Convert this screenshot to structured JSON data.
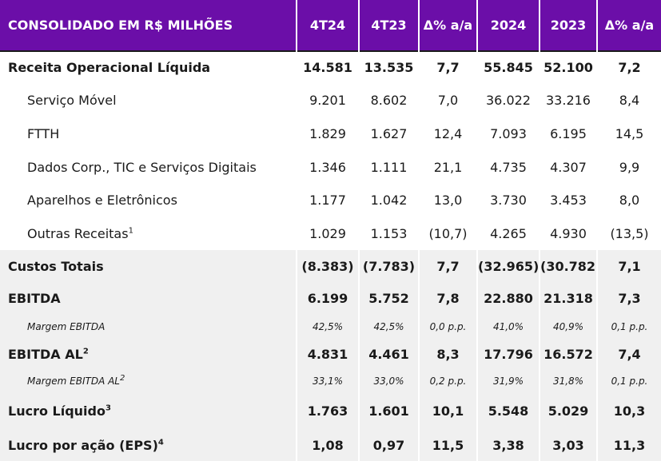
{
  "header": {
    "title": "CONSOLIDADO EM R$ MILHÕES",
    "columns": [
      "4T24",
      "4T23",
      "Δ% a/a",
      "2024",
      "2023",
      "Δ% a/a"
    ]
  },
  "rows": [
    {
      "label": "Receita Operacional Líquida",
      "footnote": "",
      "values": [
        "14.581",
        "13.535",
        "7,7",
        "55.845",
        "52.100",
        "7,2"
      ]
    },
    {
      "label": "Serviço Móvel",
      "footnote": "",
      "values": [
        "9.201",
        "8.602",
        "7,0",
        "36.022",
        "33.216",
        "8,4"
      ]
    },
    {
      "label": "FTTH",
      "footnote": "",
      "values": [
        "1.829",
        "1.627",
        "12,4",
        "7.093",
        "6.195",
        "14,5"
      ]
    },
    {
      "label": "Dados Corp., TIC e Serviços Digitais",
      "footnote": "",
      "values": [
        "1.346",
        "1.111",
        "21,1",
        "4.735",
        "4.307",
        "9,9"
      ]
    },
    {
      "label": "Aparelhos e Eletrônicos",
      "footnote": "",
      "values": [
        "1.177",
        "1.042",
        "13,0",
        "3.730",
        "3.453",
        "8,0"
      ]
    },
    {
      "label": "Outras Receitas",
      "footnote": "1",
      "values": [
        "1.029",
        "1.153",
        "(10,7)",
        "4.265",
        "4.930",
        "(13,5)"
      ]
    },
    {
      "label": "Custos Totais",
      "footnote": "",
      "values": [
        "(8.383)",
        "(7.783)",
        "7,7",
        "(32.965)",
        "(30.782)",
        "7,1"
      ]
    },
    {
      "label": "EBITDA",
      "footnote": "",
      "values": [
        "6.199",
        "5.752",
        "7,8",
        "22.880",
        "21.318",
        "7,3"
      ]
    },
    {
      "label": "Margem EBITDA",
      "footnote": "",
      "values": [
        "42,5%",
        "42,5%",
        "0,0 p.p.",
        "41,0%",
        "40,9%",
        "0,1 p.p."
      ]
    },
    {
      "label": "EBITDA AL",
      "footnote": "2",
      "values": [
        "4.831",
        "4.461",
        "8,3",
        "17.796",
        "16.572",
        "7,4"
      ]
    },
    {
      "label": "Margem EBITDA AL",
      "footnote": "2",
      "values": [
        "33,1%",
        "33,0%",
        "0,2 p.p.",
        "31,9%",
        "31,8%",
        "0,1 p.p."
      ]
    },
    {
      "label": "Lucro Líquido",
      "footnote": "3",
      "values": [
        "1.763",
        "1.601",
        "10,1",
        "5.548",
        "5.029",
        "10,3"
      ]
    },
    {
      "label": "Lucro por ação (EPS)",
      "footnote": "4",
      "values": [
        "1,08",
        "0,97",
        "11,5",
        "3,38",
        "3,03",
        "11,3"
      ]
    }
  ],
  "colors": {
    "header_bg": "#6b0ea8",
    "header_text": "#ffffff",
    "band_bg": "#f0f0f0",
    "rule": "#1a1a1a"
  }
}
